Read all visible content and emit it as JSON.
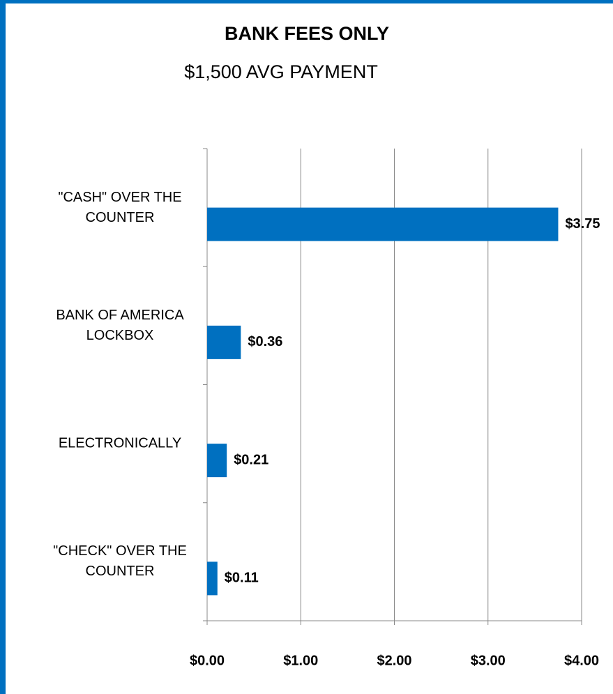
{
  "chart_data": {
    "type": "hbar",
    "title": "BANK FEES ONLY",
    "subtitle": "$1,500 AVG PAYMENT",
    "categories": [
      "\"CASH\" OVER THE\nCOUNTER",
      "BANK OF AMERICA\nLOCKBOX",
      "ELECTRONICALLY",
      "\"CHECK\" OVER THE\nCOUNTER"
    ],
    "values": [
      3.75,
      0.36,
      0.21,
      0.11
    ],
    "value_labels": [
      "$3.75",
      "$0.36",
      "$0.21",
      "$0.11"
    ],
    "color": "#0070c0",
    "xlim": [
      0,
      4
    ],
    "xticks": [
      {
        "value": 0,
        "label": "$0.00"
      },
      {
        "value": 1,
        "label": "$1.00"
      },
      {
        "value": 2,
        "label": "$2.00"
      },
      {
        "value": 3,
        "label": "$3.00"
      },
      {
        "value": 4,
        "label": "$4.00"
      }
    ],
    "grid": true
  }
}
